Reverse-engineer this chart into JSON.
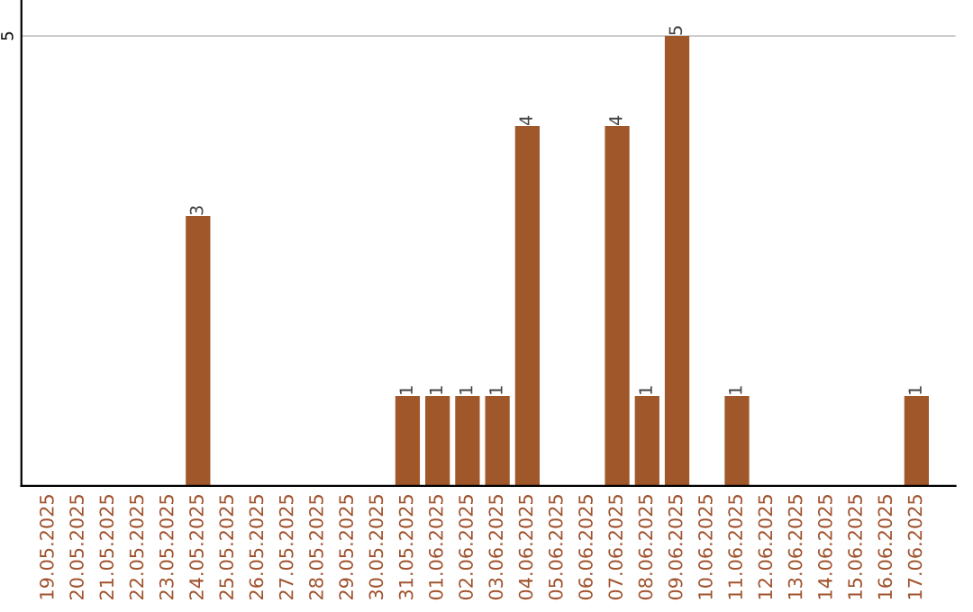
{
  "chart_data": {
    "type": "bar",
    "categories": [
      "19.05.2025",
      "20.05.2025",
      "21.05.2025",
      "22.05.2025",
      "23.05.2025",
      "24.05.2025",
      "25.05.2025",
      "26.05.2025",
      "27.05.2025",
      "28.05.2025",
      "29.05.2025",
      "30.05.2025",
      "31.05.2025",
      "01.06.2025",
      "02.06.2025",
      "03.06.2025",
      "04.06.2025",
      "05.06.2025",
      "06.06.2025",
      "07.06.2025",
      "08.06.2025",
      "09.06.2025",
      "10.06.2025",
      "11.06.2025",
      "12.06.2025",
      "13.06.2025",
      "14.06.2025",
      "15.06.2025",
      "16.06.2025",
      "17.06.2025"
    ],
    "values": [
      0,
      0,
      0,
      0,
      0,
      3,
      0,
      0,
      0,
      0,
      0,
      0,
      1,
      1,
      1,
      1,
      4,
      0,
      0,
      4,
      1,
      5,
      0,
      1,
      0,
      0,
      0,
      0,
      0,
      1
    ],
    "color": "#a0572a",
    "value_labels": [
      null,
      null,
      null,
      null,
      null,
      "3",
      null,
      null,
      null,
      null,
      null,
      null,
      "1",
      "1",
      "1",
      "1",
      "4",
      null,
      null,
      "4",
      "1",
      "5",
      null,
      "1",
      null,
      null,
      null,
      null,
      null,
      "1"
    ],
    "ylim": [
      0,
      5.4
    ],
    "yticks": [
      5
    ],
    "grid": "y"
  }
}
